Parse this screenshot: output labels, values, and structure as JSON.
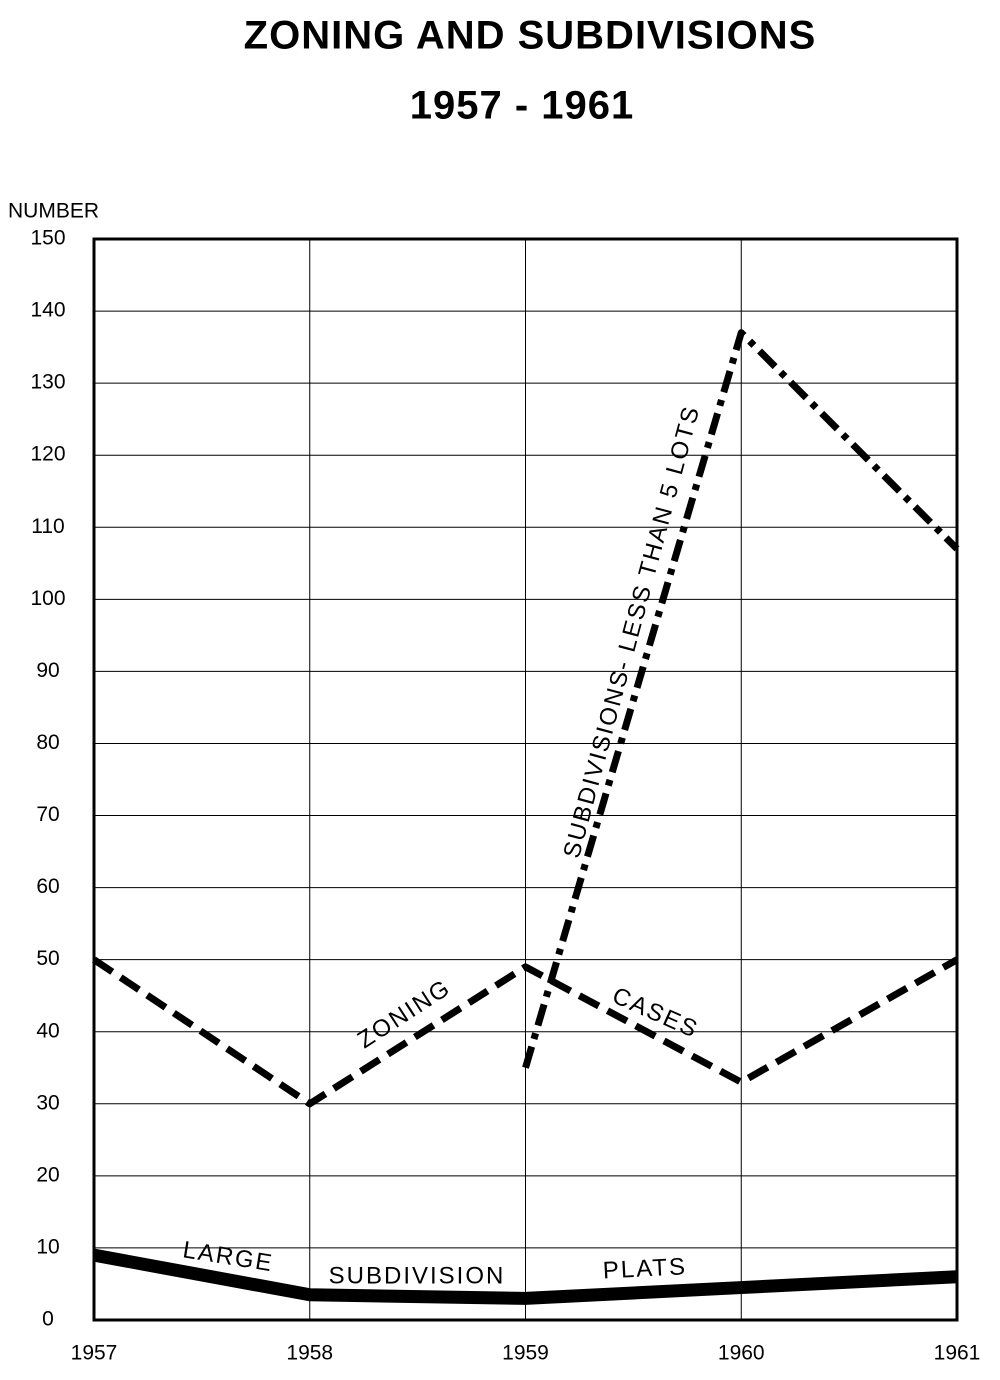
{
  "chart_data": {
    "type": "line",
    "title": "ZONING AND SUBDIVISIONS",
    "subtitle": "1957 - 1961",
    "y_label": "NUMBER",
    "x": [
      1957,
      1958,
      1959,
      1960,
      1961
    ],
    "xlim": [
      1957,
      1961
    ],
    "xticks": [
      1957,
      1958,
      1959,
      1960,
      1961
    ],
    "ylim": [
      0,
      150
    ],
    "yticks": [
      0,
      10,
      20,
      30,
      40,
      50,
      60,
      70,
      80,
      90,
      100,
      110,
      120,
      130,
      140,
      150
    ],
    "grid": true,
    "series": [
      {
        "name_parts": [
          "ZONING",
          "CASES"
        ],
        "color": "#000000",
        "style": "dashed",
        "values": [
          50,
          30,
          49,
          33,
          50
        ]
      },
      {
        "name_parts": [
          "SUBDIVISIONS- LESS THAN 5 LOTS"
        ],
        "color": "#000000",
        "style": "dashdot",
        "values": [
          null,
          null,
          35,
          137,
          107
        ]
      },
      {
        "name_parts": [
          "LARGE",
          "SUBDIVISION",
          "PLATS"
        ],
        "color": "#000000",
        "style": "solid",
        "values": [
          9,
          3.5,
          3,
          4.5,
          6
        ]
      }
    ]
  }
}
